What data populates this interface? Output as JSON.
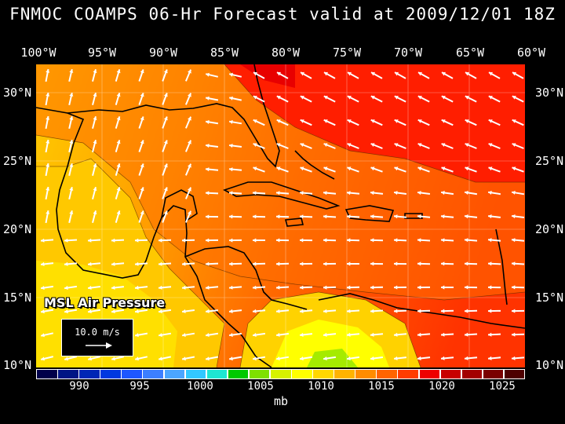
{
  "title": "FNMOC COAMPS 06-Hr Forecast valid at 2009/12/01 18Z",
  "longitude_labels": [
    "100°W",
    "95°W",
    "90°W",
    "85°W",
    "80°W",
    "75°W",
    "70°W",
    "65°W",
    "60°W"
  ],
  "latitude_labels": [
    "30°N",
    "25°N",
    "20°N",
    "15°N",
    "10°N"
  ],
  "field_label": "MSL Air Pressure",
  "reference_vector": "10.0 m/s",
  "colorbar": {
    "unit": "mb",
    "tick_labels": [
      "990",
      "995",
      "1000",
      "1005",
      "1010",
      "1015",
      "1020",
      "1025"
    ],
    "colors": [
      "#00004a",
      "#001585",
      "#0026b5",
      "#0038e0",
      "#1e57ff",
      "#3c7fff",
      "#4ba6ff",
      "#32c8ff",
      "#1ee6d2",
      "#00c900",
      "#7ee000",
      "#d6f200",
      "#ffff00",
      "#ffd800",
      "#ffb300",
      "#ff8c00",
      "#ff6400",
      "#ff3c00",
      "#ee0000",
      "#c80000",
      "#a30000",
      "#7a0000",
      "#4e0000"
    ]
  }
}
